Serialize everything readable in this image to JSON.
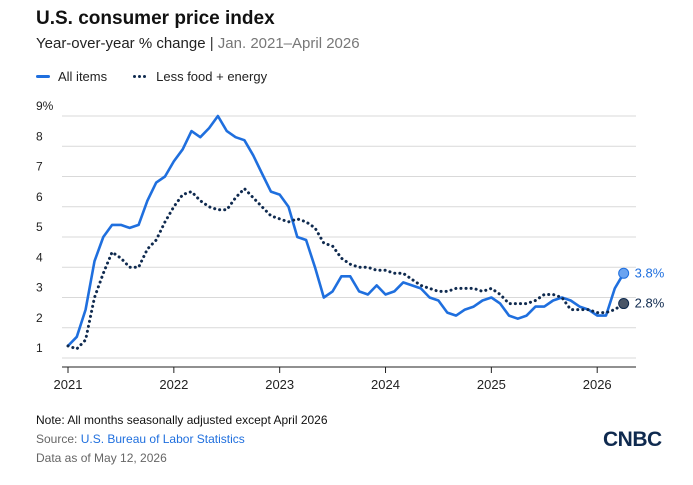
{
  "header": {
    "title": "U.S. consumer price index",
    "subtitle_main": "Year-over-year % change",
    "subtitle_sep": "|",
    "subtitle_range": "Jan. 2021–April 2026"
  },
  "legend": {
    "items": [
      "All items",
      "Less food + energy"
    ]
  },
  "footer": {
    "note": "Note: All months seasonally adjusted except April 2026",
    "source_prefix": "Source: ",
    "source_link": "U.S. Bureau of Labor Statistics",
    "asof": "Data as of May 12, 2026",
    "logo": "CNBC"
  },
  "chart_data": {
    "type": "line",
    "title": "U.S. consumer price index",
    "ylim": [
      1,
      9
    ],
    "y_ticks": [
      "1",
      "2",
      "3",
      "4",
      "5",
      "6",
      "7",
      "8",
      "9%"
    ],
    "x_ticks": [
      {
        "label": "2021",
        "t": 0
      },
      {
        "label": "2022",
        "t": 12
      },
      {
        "label": "2023",
        "t": 24
      },
      {
        "label": "2024",
        "t": 36
      },
      {
        "label": "2025",
        "t": 48
      },
      {
        "label": "2026",
        "t": 60
      }
    ],
    "colors": {
      "all_items": "#1f6fde",
      "core": "#0f2a4f",
      "grid": "#d9d9d9"
    },
    "series": [
      {
        "name": "All items",
        "style": "solid",
        "end_label": "3.8%",
        "values": [
          1.4,
          1.7,
          2.6,
          4.2,
          5.0,
          5.4,
          5.4,
          5.3,
          5.4,
          6.2,
          6.8,
          7.0,
          7.5,
          7.9,
          8.5,
          8.3,
          8.6,
          9.0,
          8.5,
          8.3,
          8.2,
          7.7,
          7.1,
          6.5,
          6.4,
          6.0,
          5.0,
          4.9,
          4.0,
          3.0,
          3.2,
          3.7,
          3.7,
          3.2,
          3.1,
          3.4,
          3.1,
          3.2,
          3.5,
          3.4,
          3.3,
          3.0,
          2.9,
          2.5,
          2.4,
          2.6,
          2.7,
          2.9,
          3.0,
          2.8,
          2.4,
          2.3,
          2.4,
          2.7,
          2.7,
          2.9,
          3.0,
          2.9,
          2.7,
          2.6,
          2.4,
          2.4,
          3.3,
          3.8
        ]
      },
      {
        "name": "Less food + energy",
        "style": "dotted",
        "end_label": "2.8%",
        "values": [
          1.4,
          1.3,
          1.6,
          3.0,
          3.8,
          4.5,
          4.3,
          4.0,
          4.0,
          4.6,
          4.9,
          5.5,
          6.0,
          6.4,
          6.5,
          6.2,
          6.0,
          5.9,
          5.9,
          6.3,
          6.6,
          6.3,
          6.0,
          5.7,
          5.6,
          5.5,
          5.6,
          5.5,
          5.3,
          4.8,
          4.7,
          4.3,
          4.1,
          4.0,
          4.0,
          3.9,
          3.9,
          3.8,
          3.8,
          3.6,
          3.4,
          3.3,
          3.2,
          3.2,
          3.3,
          3.3,
          3.3,
          3.2,
          3.3,
          3.1,
          2.8,
          2.8,
          2.8,
          2.9,
          3.1,
          3.1,
          3.0,
          2.6,
          2.6,
          2.6,
          2.5,
          2.5,
          2.6,
          2.8
        ]
      }
    ]
  }
}
